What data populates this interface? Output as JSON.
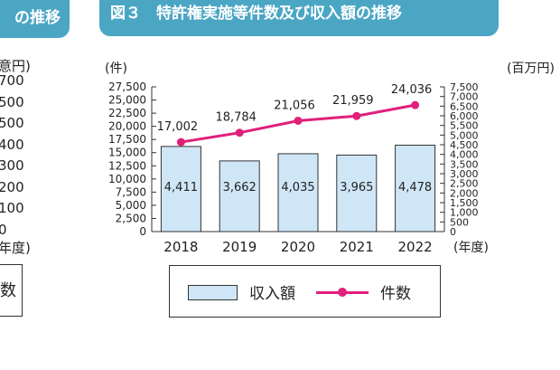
{
  "left_panel": {
    "badge": "の推移",
    "unit": "意円)",
    "ticks": [
      "700",
      "500",
      "500",
      "400",
      "300",
      "200",
      "100",
      "0"
    ],
    "year_label": "年度)",
    "legend_frag": "数"
  },
  "header": {
    "title": "図３　特許権実施等件数及び収入額の推移"
  },
  "chart_data": {
    "type": "bar+line",
    "categories": [
      "2018",
      "2019",
      "2020",
      "2021",
      "2022"
    ],
    "series": [
      {
        "name": "収入額",
        "type": "bar",
        "axis": "right",
        "values": [
          4411,
          3662,
          4035,
          3965,
          4478
        ],
        "labels": [
          "4,411",
          "3,662",
          "4,035",
          "3,965",
          "4,478"
        ]
      },
      {
        "name": "件数",
        "type": "line",
        "axis": "left",
        "values": [
          17002,
          18784,
          21056,
          21959,
          24036
        ],
        "labels": [
          "17,002",
          "18,784",
          "21,056",
          "21,959",
          "24,036"
        ]
      }
    ],
    "y_left": {
      "label": "(件)",
      "ylim": [
        0,
        27500
      ],
      "ticks": [
        "0",
        "2,500",
        "5,000",
        "7,500",
        "10,000",
        "12,500",
        "15,000",
        "17,500",
        "20,000",
        "22,500",
        "25,000",
        "27,500"
      ]
    },
    "y_right": {
      "label": "(百万円)",
      "ylim": [
        0,
        7500
      ],
      "ticks": [
        "0",
        "500",
        "1,000",
        "1,500",
        "2,000",
        "2,500",
        "3,000",
        "3,500",
        "4,000",
        "4,500",
        "5,000",
        "5,500",
        "6,000",
        "6,500",
        "7,000",
        "7,500"
      ]
    },
    "x_unit": "(年度)",
    "legend": [
      "収入額",
      "件数"
    ],
    "colors": {
      "bar": "#cfe6f7",
      "line": "#e0207a",
      "header": "#4ba6c4"
    }
  }
}
